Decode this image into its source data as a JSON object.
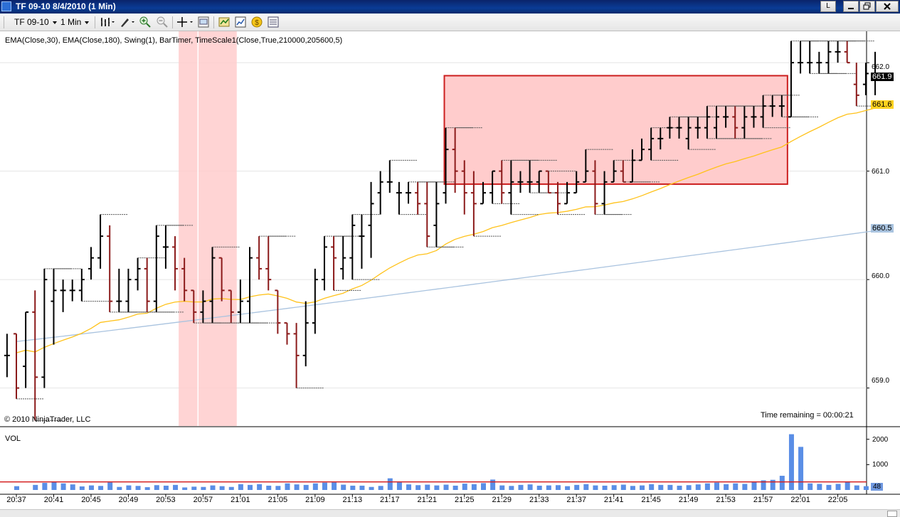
{
  "window": {
    "title": "TF 09-10  8/4/2010 (1 Min)",
    "mode_button": "L"
  },
  "toolbar": {
    "instrument": "TF 09-10",
    "interval": "1 Min",
    "icons": [
      "bar-style-icon",
      "draw-tool-icon",
      "zoom-in-icon",
      "zoom-out-icon",
      "crosshair-icon",
      "properties-icon",
      "strategies-icon",
      "indicators-icon",
      "chart-trader-icon",
      "data-box-icon"
    ]
  },
  "chart": {
    "indicators_text": "EMA(Close,30), EMA(Close,180), Swing(1), BarTimer, TimeScale1(Close,True,210000,205600,5)",
    "copyright": "© 2010 NinjaTrader, LLC",
    "time_remaining": "Time remaining = 00:00:21",
    "volume_label": "VOL",
    "price_ticks": [
      "662.0",
      "661.0",
      "660.0",
      "659.0"
    ],
    "price_markers": [
      {
        "value": "661.9",
        "bg": "#000000",
        "fg": "#ffffff"
      },
      {
        "value": "661.6",
        "bg": "#ffd21f",
        "fg": "#000000"
      },
      {
        "value": "660.5",
        "bg": "#a9c3df",
        "fg": "#000000"
      }
    ],
    "volume_ticks": [
      "2000",
      "1000"
    ],
    "volume_marker": "48",
    "time_ticks": [
      "20:37",
      "20:41",
      "20:45",
      "20:49",
      "20:53",
      "20:57",
      "21:01",
      "21:05",
      "21:09",
      "21:13",
      "21:17",
      "21:21",
      "21:25",
      "21:29",
      "21:33",
      "21:37",
      "21:41",
      "21:45",
      "21:49",
      "21:53",
      "21:57",
      "22:01",
      "22:05"
    ],
    "colors": {
      "up_bar": "#000000",
      "down_bar": "#8b1a1a",
      "ema30": "#ffc21a",
      "ema180": "#a9c3df",
      "highlight": "#ffcccc",
      "box_border": "#cc1f1f",
      "volume": "#5a8ee6",
      "volume_avg_line": "#d42020"
    }
  },
  "chart_data": {
    "type": "ohlc",
    "y_axis_range": [
      658.65,
      662.25
    ],
    "volume_axis_range": [
      0,
      2300
    ],
    "bars": [
      {
        "t": "20:36",
        "o": 659.3,
        "h": 659.5,
        "l": 659.1,
        "c": 659.3
      },
      {
        "t": "20:37",
        "o": 659.5,
        "h": 659.5,
        "l": 658.9,
        "c": 659.0
      },
      {
        "t": "20:38",
        "o": 659.2,
        "h": 659.7,
        "l": 659.0,
        "c": 659.7
      },
      {
        "t": "20:39",
        "o": 659.7,
        "h": 659.9,
        "l": 658.7,
        "c": 659.1
      },
      {
        "t": "20:40",
        "o": 659.1,
        "h": 660.1,
        "l": 659.0,
        "c": 660.0
      },
      {
        "t": "20:41",
        "o": 659.8,
        "h": 660.1,
        "l": 659.4,
        "c": 659.9
      },
      {
        "t": "20:42",
        "o": 659.9,
        "h": 660.0,
        "l": 659.7,
        "c": 659.9
      },
      {
        "t": "20:43",
        "o": 659.9,
        "h": 660.0,
        "l": 659.8,
        "c": 659.9
      },
      {
        "t": "20:44",
        "o": 659.9,
        "h": 660.1,
        "l": 659.8,
        "c": 660.0
      },
      {
        "t": "20:45",
        "o": 660.1,
        "h": 660.3,
        "l": 660.0,
        "c": 660.2
      },
      {
        "t": "20:46",
        "o": 660.2,
        "h": 660.6,
        "l": 660.1,
        "c": 660.4
      },
      {
        "t": "20:47",
        "o": 660.4,
        "h": 660.5,
        "l": 659.7,
        "c": 659.8
      },
      {
        "t": "20:48",
        "o": 659.8,
        "h": 660.1,
        "l": 659.7,
        "c": 659.8
      },
      {
        "t": "20:49",
        "o": 659.8,
        "h": 660.1,
        "l": 659.7,
        "c": 660.0
      },
      {
        "t": "20:50",
        "o": 660.0,
        "h": 660.2,
        "l": 659.9,
        "c": 660.1
      },
      {
        "t": "20:51",
        "o": 660.1,
        "h": 660.2,
        "l": 659.7,
        "c": 659.8
      },
      {
        "t": "20:52",
        "o": 659.8,
        "h": 660.5,
        "l": 659.7,
        "c": 660.4
      },
      {
        "t": "20:53",
        "o": 660.3,
        "h": 660.5,
        "l": 660.1,
        "c": 660.3
      },
      {
        "t": "20:54",
        "o": 660.3,
        "h": 660.4,
        "l": 659.9,
        "c": 660.1
      },
      {
        "t": "20:55",
        "o": 660.1,
        "h": 660.2,
        "l": 659.8,
        "c": 659.9
      },
      {
        "t": "20:56",
        "o": 659.9,
        "h": 659.9,
        "l": 659.6,
        "c": 659.7
      },
      {
        "t": "20:57",
        "o": 659.7,
        "h": 659.9,
        "l": 659.6,
        "c": 659.8
      },
      {
        "t": "20:58",
        "o": 659.8,
        "h": 660.3,
        "l": 659.6,
        "c": 660.2
      },
      {
        "t": "20:59",
        "o": 660.2,
        "h": 660.2,
        "l": 659.8,
        "c": 659.9
      },
      {
        "t": "21:00",
        "o": 659.9,
        "h": 659.9,
        "l": 659.6,
        "c": 659.7
      },
      {
        "t": "21:01",
        "o": 659.7,
        "h": 660.0,
        "l": 659.6,
        "c": 659.8
      },
      {
        "t": "21:02",
        "o": 659.8,
        "h": 660.3,
        "l": 659.6,
        "c": 660.2
      },
      {
        "t": "21:03",
        "o": 660.2,
        "h": 660.4,
        "l": 660.0,
        "c": 660.1
      },
      {
        "t": "21:04",
        "o": 660.1,
        "h": 660.4,
        "l": 659.9,
        "c": 660.0
      },
      {
        "t": "21:05",
        "o": 659.9,
        "h": 659.9,
        "l": 659.5,
        "c": 659.6
      },
      {
        "t": "21:06",
        "o": 659.6,
        "h": 659.6,
        "l": 659.4,
        "c": 659.5
      },
      {
        "t": "21:07",
        "o": 659.5,
        "h": 659.6,
        "l": 659.0,
        "c": 659.3
      },
      {
        "t": "21:08",
        "o": 659.3,
        "h": 659.8,
        "l": 659.2,
        "c": 659.6
      },
      {
        "t": "21:09",
        "o": 659.6,
        "h": 660.1,
        "l": 659.5,
        "c": 660.0
      },
      {
        "t": "21:10",
        "o": 660.0,
        "h": 660.4,
        "l": 659.9,
        "c": 660.3
      },
      {
        "t": "21:11",
        "o": 660.3,
        "h": 660.4,
        "l": 659.9,
        "c": 660.2
      },
      {
        "t": "21:12",
        "o": 660.1,
        "h": 660.4,
        "l": 660.0,
        "c": 660.2
      },
      {
        "t": "21:13",
        "o": 660.2,
        "h": 660.6,
        "l": 660.0,
        "c": 660.5
      },
      {
        "t": "21:14",
        "o": 660.4,
        "h": 660.6,
        "l": 660.1,
        "c": 660.4
      },
      {
        "t": "21:15",
        "o": 660.5,
        "h": 660.9,
        "l": 660.2,
        "c": 660.7
      },
      {
        "t": "21:16",
        "o": 660.8,
        "h": 661.0,
        "l": 660.6,
        "c": 660.9
      },
      {
        "t": "21:17",
        "o": 660.9,
        "h": 661.1,
        "l": 660.8,
        "c": 660.9
      },
      {
        "t": "21:18",
        "o": 660.8,
        "h": 660.9,
        "l": 660.6,
        "c": 660.8
      },
      {
        "t": "21:19",
        "o": 660.8,
        "h": 660.9,
        "l": 660.7,
        "c": 660.8
      },
      {
        "t": "21:20",
        "o": 660.8,
        "h": 660.9,
        "l": 660.6,
        "c": 660.7
      },
      {
        "t": "21:21",
        "o": 660.7,
        "h": 660.9,
        "l": 660.3,
        "c": 660.4
      },
      {
        "t": "21:22",
        "o": 660.5,
        "h": 660.9,
        "l": 660.3,
        "c": 660.7
      },
      {
        "t": "21:23",
        "o": 660.8,
        "h": 661.4,
        "l": 660.7,
        "c": 661.2
      },
      {
        "t": "21:24",
        "o": 661.2,
        "h": 661.4,
        "l": 660.8,
        "c": 661.0
      },
      {
        "t": "21:25",
        "o": 661.0,
        "h": 661.1,
        "l": 660.6,
        "c": 660.8
      },
      {
        "t": "21:26",
        "o": 660.8,
        "h": 661.0,
        "l": 660.4,
        "c": 660.7
      },
      {
        "t": "21:27",
        "o": 660.7,
        "h": 660.9,
        "l": 660.7,
        "c": 660.8
      },
      {
        "t": "21:28",
        "o": 660.8,
        "h": 661.0,
        "l": 660.7,
        "c": 661.0
      },
      {
        "t": "21:29",
        "o": 661.0,
        "h": 661.1,
        "l": 660.7,
        "c": 660.8
      },
      {
        "t": "21:30",
        "o": 660.8,
        "h": 661.1,
        "l": 660.6,
        "c": 660.9
      },
      {
        "t": "21:31",
        "o": 660.9,
        "h": 661.0,
        "l": 660.8,
        "c": 660.9
      },
      {
        "t": "21:32",
        "o": 660.9,
        "h": 661.1,
        "l": 660.8,
        "c": 660.9
      },
      {
        "t": "21:33",
        "o": 660.9,
        "h": 661.0,
        "l": 660.8,
        "c": 661.0
      },
      {
        "t": "21:34",
        "o": 661.0,
        "h": 661.0,
        "l": 660.8,
        "c": 660.8
      },
      {
        "t": "21:35",
        "o": 660.8,
        "h": 660.9,
        "l": 660.6,
        "c": 660.7
      },
      {
        "t": "21:36",
        "o": 660.7,
        "h": 660.9,
        "l": 660.7,
        "c": 660.8
      },
      {
        "t": "21:37",
        "o": 660.8,
        "h": 661.0,
        "l": 660.8,
        "c": 660.9
      },
      {
        "t": "21:38",
        "o": 660.9,
        "h": 661.2,
        "l": 660.9,
        "c": 661.0
      },
      {
        "t": "21:39",
        "o": 661.0,
        "h": 661.1,
        "l": 660.6,
        "c": 660.7
      },
      {
        "t": "21:40",
        "o": 660.7,
        "h": 661.0,
        "l": 660.6,
        "c": 660.9
      },
      {
        "t": "21:41",
        "o": 660.9,
        "h": 661.1,
        "l": 660.9,
        "c": 661.0
      },
      {
        "t": "21:42",
        "o": 661.0,
        "h": 661.1,
        "l": 660.9,
        "c": 660.9
      },
      {
        "t": "21:43",
        "o": 660.9,
        "h": 661.2,
        "l": 660.9,
        "c": 661.1
      },
      {
        "t": "21:44",
        "o": 661.1,
        "h": 661.3,
        "l": 661.1,
        "c": 661.2
      },
      {
        "t": "21:45",
        "o": 661.2,
        "h": 661.4,
        "l": 661.1,
        "c": 661.3
      },
      {
        "t": "21:46",
        "o": 661.3,
        "h": 661.4,
        "l": 661.2,
        "c": 661.3
      },
      {
        "t": "21:47",
        "o": 661.4,
        "h": 661.5,
        "l": 661.3,
        "c": 661.4
      },
      {
        "t": "21:48",
        "o": 661.4,
        "h": 661.5,
        "l": 661.3,
        "c": 661.4
      },
      {
        "t": "21:49",
        "o": 661.3,
        "h": 661.5,
        "l": 661.2,
        "c": 661.4
      },
      {
        "t": "21:50",
        "o": 661.4,
        "h": 661.5,
        "l": 661.3,
        "c": 661.4
      },
      {
        "t": "21:51",
        "o": 661.4,
        "h": 661.6,
        "l": 661.3,
        "c": 661.5
      },
      {
        "t": "21:52",
        "o": 661.4,
        "h": 661.6,
        "l": 661.3,
        "c": 661.5
      },
      {
        "t": "21:53",
        "o": 661.5,
        "h": 661.6,
        "l": 661.4,
        "c": 661.5
      },
      {
        "t": "21:54",
        "o": 661.5,
        "h": 661.6,
        "l": 661.3,
        "c": 661.4
      },
      {
        "t": "21:55",
        "o": 661.4,
        "h": 661.6,
        "l": 661.3,
        "c": 661.5
      },
      {
        "t": "21:56",
        "o": 661.5,
        "h": 661.6,
        "l": 661.4,
        "c": 661.5
      },
      {
        "t": "21:57",
        "o": 661.5,
        "h": 661.7,
        "l": 661.4,
        "c": 661.6
      },
      {
        "t": "21:58",
        "o": 661.6,
        "h": 661.7,
        "l": 661.5,
        "c": 661.6
      },
      {
        "t": "21:59",
        "o": 661.6,
        "h": 661.7,
        "l": 661.5,
        "c": 661.6
      },
      {
        "t": "22:00",
        "o": 661.5,
        "h": 662.2,
        "l": 661.5,
        "c": 662.0
      },
      {
        "t": "22:01",
        "o": 662.0,
        "h": 662.2,
        "l": 661.9,
        "c": 662.0
      },
      {
        "t": "22:02",
        "o": 662.0,
        "h": 662.2,
        "l": 661.9,
        "c": 662.0
      },
      {
        "t": "22:03",
        "o": 662.0,
        "h": 662.1,
        "l": 661.9,
        "c": 662.0
      },
      {
        "t": "22:04",
        "o": 662.0,
        "h": 662.2,
        "l": 661.9,
        "c": 662.1
      },
      {
        "t": "22:05",
        "o": 662.1,
        "h": 662.2,
        "l": 662.0,
        "c": 662.1
      },
      {
        "t": "22:06",
        "o": 662.1,
        "h": 662.2,
        "l": 662.0,
        "c": 662.0
      },
      {
        "t": "22:07",
        "o": 661.8,
        "h": 662.0,
        "l": 661.6,
        "c": 661.7
      },
      {
        "t": "22:08",
        "o": 661.8,
        "h": 662.0,
        "l": 661.7,
        "c": 661.9
      },
      {
        "t": "22:09",
        "o": 661.9,
        "h": 662.1,
        "l": 661.7,
        "c": 661.9
      }
    ],
    "volume": [
      {
        "t": "20:37",
        "v": 150
      },
      {
        "t": "20:39",
        "v": 200
      },
      {
        "t": "20:40",
        "v": 280
      },
      {
        "t": "20:41",
        "v": 320
      },
      {
        "t": "20:42",
        "v": 260
      },
      {
        "t": "20:43",
        "v": 220
      },
      {
        "t": "20:44",
        "v": 140
      },
      {
        "t": "20:45",
        "v": 180
      },
      {
        "t": "20:46",
        "v": 160
      },
      {
        "t": "20:47",
        "v": 300
      },
      {
        "t": "20:48",
        "v": 120
      },
      {
        "t": "20:49",
        "v": 180
      },
      {
        "t": "20:50",
        "v": 160
      },
      {
        "t": "20:51",
        "v": 110
      },
      {
        "t": "20:52",
        "v": 190
      },
      {
        "t": "20:53",
        "v": 170
      },
      {
        "t": "20:54",
        "v": 200
      },
      {
        "t": "20:55",
        "v": 100
      },
      {
        "t": "20:56",
        "v": 130
      },
      {
        "t": "20:57",
        "v": 120
      },
      {
        "t": "20:58",
        "v": 180
      },
      {
        "t": "20:59",
        "v": 150
      },
      {
        "t": "21:00",
        "v": 120
      },
      {
        "t": "21:01",
        "v": 230
      },
      {
        "t": "21:02",
        "v": 200
      },
      {
        "t": "21:03",
        "v": 230
      },
      {
        "t": "21:04",
        "v": 170
      },
      {
        "t": "21:05",
        "v": 160
      },
      {
        "t": "21:06",
        "v": 260
      },
      {
        "t": "21:07",
        "v": 220
      },
      {
        "t": "21:08",
        "v": 200
      },
      {
        "t": "21:09",
        "v": 260
      },
      {
        "t": "21:10",
        "v": 290
      },
      {
        "t": "21:11",
        "v": 300
      },
      {
        "t": "21:12",
        "v": 210
      },
      {
        "t": "21:13",
        "v": 170
      },
      {
        "t": "21:14",
        "v": 170
      },
      {
        "t": "21:15",
        "v": 120
      },
      {
        "t": "21:16",
        "v": 160
      },
      {
        "t": "21:17",
        "v": 460
      },
      {
        "t": "21:18",
        "v": 300
      },
      {
        "t": "21:19",
        "v": 220
      },
      {
        "t": "21:20",
        "v": 190
      },
      {
        "t": "21:21",
        "v": 210
      },
      {
        "t": "21:22",
        "v": 180
      },
      {
        "t": "21:23",
        "v": 210
      },
      {
        "t": "21:24",
        "v": 170
      },
      {
        "t": "21:25",
        "v": 250
      },
      {
        "t": "21:26",
        "v": 230
      },
      {
        "t": "21:27",
        "v": 270
      },
      {
        "t": "21:28",
        "v": 410
      },
      {
        "t": "21:29",
        "v": 180
      },
      {
        "t": "21:30",
        "v": 160
      },
      {
        "t": "21:31",
        "v": 200
      },
      {
        "t": "21:32",
        "v": 220
      },
      {
        "t": "21:33",
        "v": 170
      },
      {
        "t": "21:34",
        "v": 180
      },
      {
        "t": "21:35",
        "v": 190
      },
      {
        "t": "21:36",
        "v": 150
      },
      {
        "t": "21:37",
        "v": 200
      },
      {
        "t": "21:38",
        "v": 230
      },
      {
        "t": "21:39",
        "v": 180
      },
      {
        "t": "21:40",
        "v": 170
      },
      {
        "t": "21:41",
        "v": 190
      },
      {
        "t": "21:42",
        "v": 210
      },
      {
        "t": "21:43",
        "v": 160
      },
      {
        "t": "21:44",
        "v": 180
      },
      {
        "t": "21:45",
        "v": 230
      },
      {
        "t": "21:46",
        "v": 200
      },
      {
        "t": "21:47",
        "v": 200
      },
      {
        "t": "21:48",
        "v": 170
      },
      {
        "t": "21:49",
        "v": 190
      },
      {
        "t": "21:50",
        "v": 220
      },
      {
        "t": "21:51",
        "v": 260
      },
      {
        "t": "21:52",
        "v": 290
      },
      {
        "t": "21:53",
        "v": 230
      },
      {
        "t": "21:54",
        "v": 260
      },
      {
        "t": "21:55",
        "v": 240
      },
      {
        "t": "21:56",
        "v": 330
      },
      {
        "t": "21:57",
        "v": 380
      },
      {
        "t": "21:58",
        "v": 400
      },
      {
        "t": "21:59",
        "v": 560
      },
      {
        "t": "22:00",
        "v": 2200
      },
      {
        "t": "22:01",
        "v": 1700
      },
      {
        "t": "22:02",
        "v": 260
      },
      {
        "t": "22:03",
        "v": 240
      },
      {
        "t": "22:04",
        "v": 200
      },
      {
        "t": "22:05",
        "v": 240
      },
      {
        "t": "22:06",
        "v": 330
      },
      {
        "t": "22:07",
        "v": 180
      },
      {
        "t": "22:08",
        "v": 150
      }
    ],
    "volume_average": 320
  }
}
